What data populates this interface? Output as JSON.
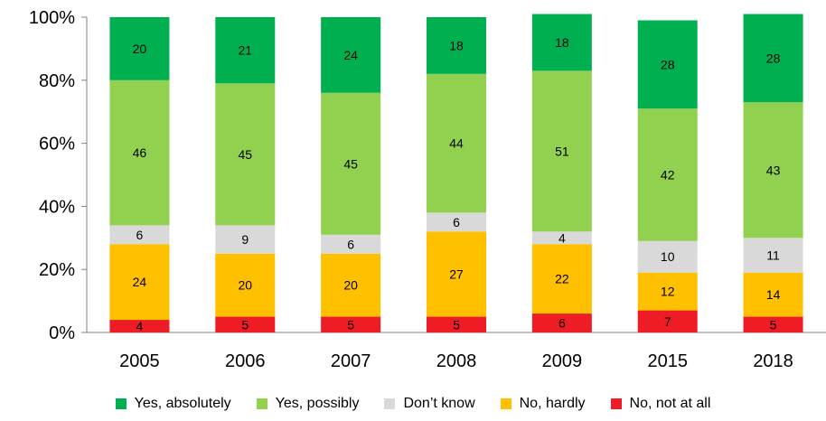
{
  "chart_data": {
    "type": "bar",
    "stacked": true,
    "categories": [
      "2005",
      "2006",
      "2007",
      "2008",
      "2009",
      "2015",
      "2018"
    ],
    "series": [
      {
        "name": "No, not at all",
        "color": "#ee1c25",
        "values": [
          4,
          5,
          5,
          5,
          6,
          7,
          5
        ]
      },
      {
        "name": "No, hardly",
        "color": "#ffc000",
        "values": [
          24,
          20,
          20,
          27,
          22,
          12,
          14
        ]
      },
      {
        "name": "Don’t know",
        "color": "#d9d9d9",
        "values": [
          6,
          9,
          6,
          6,
          4,
          10,
          11
        ]
      },
      {
        "name": "Yes, possibly",
        "color": "#92d050",
        "values": [
          46,
          45,
          45,
          44,
          51,
          42,
          43
        ]
      },
      {
        "name": "Yes, absolutely",
        "color": "#00b050",
        "values": [
          20,
          21,
          24,
          18,
          18,
          28,
          28
        ]
      }
    ],
    "y_ticks": [
      "0%",
      "20%",
      "40%",
      "60%",
      "80%",
      "100%"
    ],
    "ylim": [
      0,
      100
    ],
    "legend_order": [
      "Yes, absolutely",
      "Yes, possibly",
      "Don’t know",
      "No, hardly",
      "No, not at all"
    ],
    "legend_position": "bottom",
    "grid": false
  }
}
